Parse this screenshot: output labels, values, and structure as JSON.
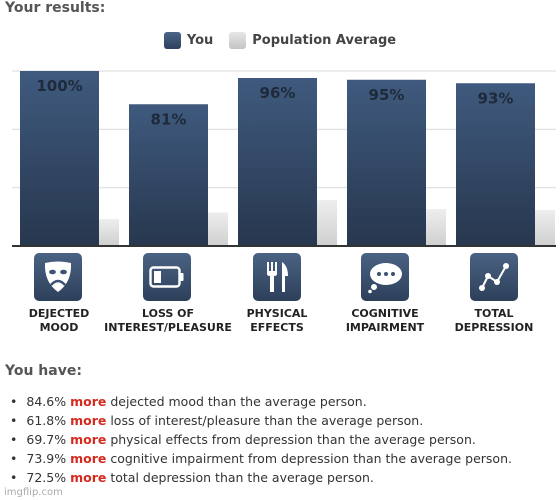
{
  "results_heading": "Your results:",
  "you_have_heading": "You have:",
  "legend": [
    {
      "label": "You",
      "color": "#3c5373"
    },
    {
      "label": "Population Average",
      "color": "#d6d6d6"
    }
  ],
  "chart_data": {
    "type": "bar",
    "categories": [
      "DEJECTED MOOD",
      "LOSS OF INTEREST/PLEASURE",
      "PHYSICAL EFFECTS",
      "COGNITIVE IMPAIRMENT",
      "TOTAL DEPRESSION"
    ],
    "series": [
      {
        "name": "You",
        "values": [
          100,
          81,
          96,
          95,
          93
        ],
        "labels": [
          "100%",
          "81%",
          "96%",
          "95%",
          "93%"
        ],
        "color": "#3c5373"
      },
      {
        "name": "Population Average",
        "values": [
          15.4,
          19.2,
          26.3,
          21.1,
          20.5
        ],
        "color": "#d6d6d6"
      }
    ],
    "ylim": [
      0,
      100
    ],
    "grid": true
  },
  "icons": [
    {
      "name": "drama-mask-icon",
      "caption_lines": [
        "DEJECTED",
        "MOOD"
      ]
    },
    {
      "name": "low-battery-icon",
      "caption_lines": [
        "LOSS OF",
        "INTEREST/PLEASURE"
      ]
    },
    {
      "name": "fork-knife-icon",
      "caption_lines": [
        "PHYSICAL",
        "EFFECTS"
      ]
    },
    {
      "name": "thought-bubble-icon",
      "caption_lines": [
        "COGNITIVE",
        "IMPAIRMENT"
      ]
    },
    {
      "name": "line-graph-icon",
      "caption_lines": [
        "TOTAL",
        "DEPRESSION"
      ]
    }
  ],
  "findings": [
    {
      "pct": "84.6%",
      "more": "more",
      "rest": "dejected mood than the average person."
    },
    {
      "pct": "61.8%",
      "more": "more",
      "rest": "loss of interest/pleasure than the average person."
    },
    {
      "pct": "69.7%",
      "more": "more",
      "rest": "physical effects from depression than the average person."
    },
    {
      "pct": "73.9%",
      "more": "more",
      "rest": "cognitive impairment from depression than the average person."
    },
    {
      "pct": "72.5%",
      "more": "more",
      "rest": "total depression than the average person."
    }
  ],
  "watermark": "imgflip.com"
}
